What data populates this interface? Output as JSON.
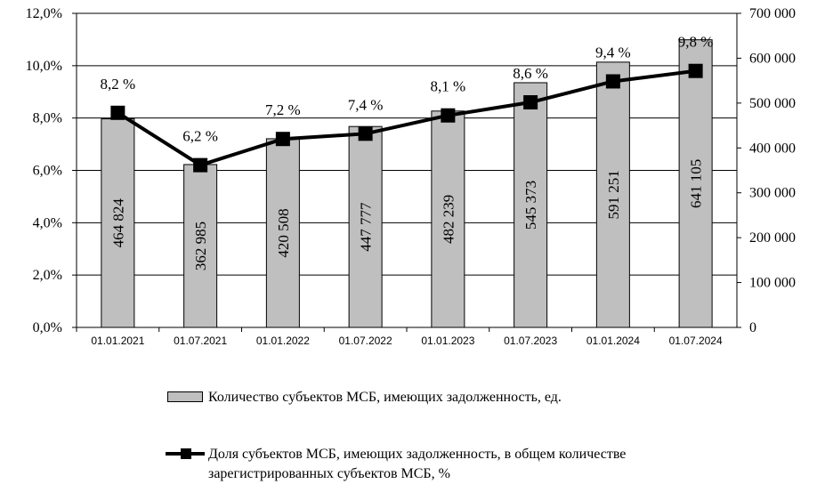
{
  "chart_data": {
    "type": "bar",
    "categories": [
      "01.01.2021",
      "01.07.2021",
      "01.01.2022",
      "01.07.2022",
      "01.01.2023",
      "01.07.2023",
      "01.01.2024",
      "01.07.2024"
    ],
    "series": [
      {
        "name": "Количество субъектов МСБ, имеющих задолженность, ед.",
        "type": "bar",
        "axis": "right",
        "values": [
          464824,
          362985,
          420508,
          447777,
          482239,
          545373,
          591251,
          641105
        ],
        "labels": [
          "464 824",
          "362 985",
          "420 508",
          "447 777",
          "482 239",
          "545 373",
          "591 251",
          "641 105"
        ],
        "color": "#bfbfbf"
      },
      {
        "name": "Доля субъектов МСБ, имеющих задолженность, в общем количестве зарегистрированных субъектов МСБ, %",
        "type": "line",
        "axis": "left",
        "values": [
          8.2,
          6.2,
          7.2,
          7.4,
          8.1,
          8.6,
          9.4,
          9.8
        ],
        "labels": [
          "8,2 %",
          "6,2 %",
          "7,2 %",
          "7,4 %",
          "8,1 %",
          "8,6 %",
          "9,4 %",
          "9,8 %"
        ],
        "color": "#000000"
      }
    ],
    "y_left": {
      "ylim": [
        0,
        12
      ],
      "ticks": [
        "0,0%",
        "2,0%",
        "4,0%",
        "6,0%",
        "8,0%",
        "10,0%",
        "12,0%"
      ]
    },
    "y_right": {
      "ylim": [
        0,
        700000
      ],
      "ticks": [
        "0",
        "100 000",
        "200 000",
        "300 000",
        "400 000",
        "500 000",
        "600 000",
        "700 000"
      ]
    },
    "grid": true,
    "legend_position": "bottom"
  },
  "legend": {
    "bar_label": "Количество субъектов МСБ, имеющих задолженность, ед.",
    "line_label_1": "Доля субъектов МСБ, имеющих задолженность, в общем количестве",
    "line_label_2": "зарегистрированных субъектов МСБ, %"
  }
}
